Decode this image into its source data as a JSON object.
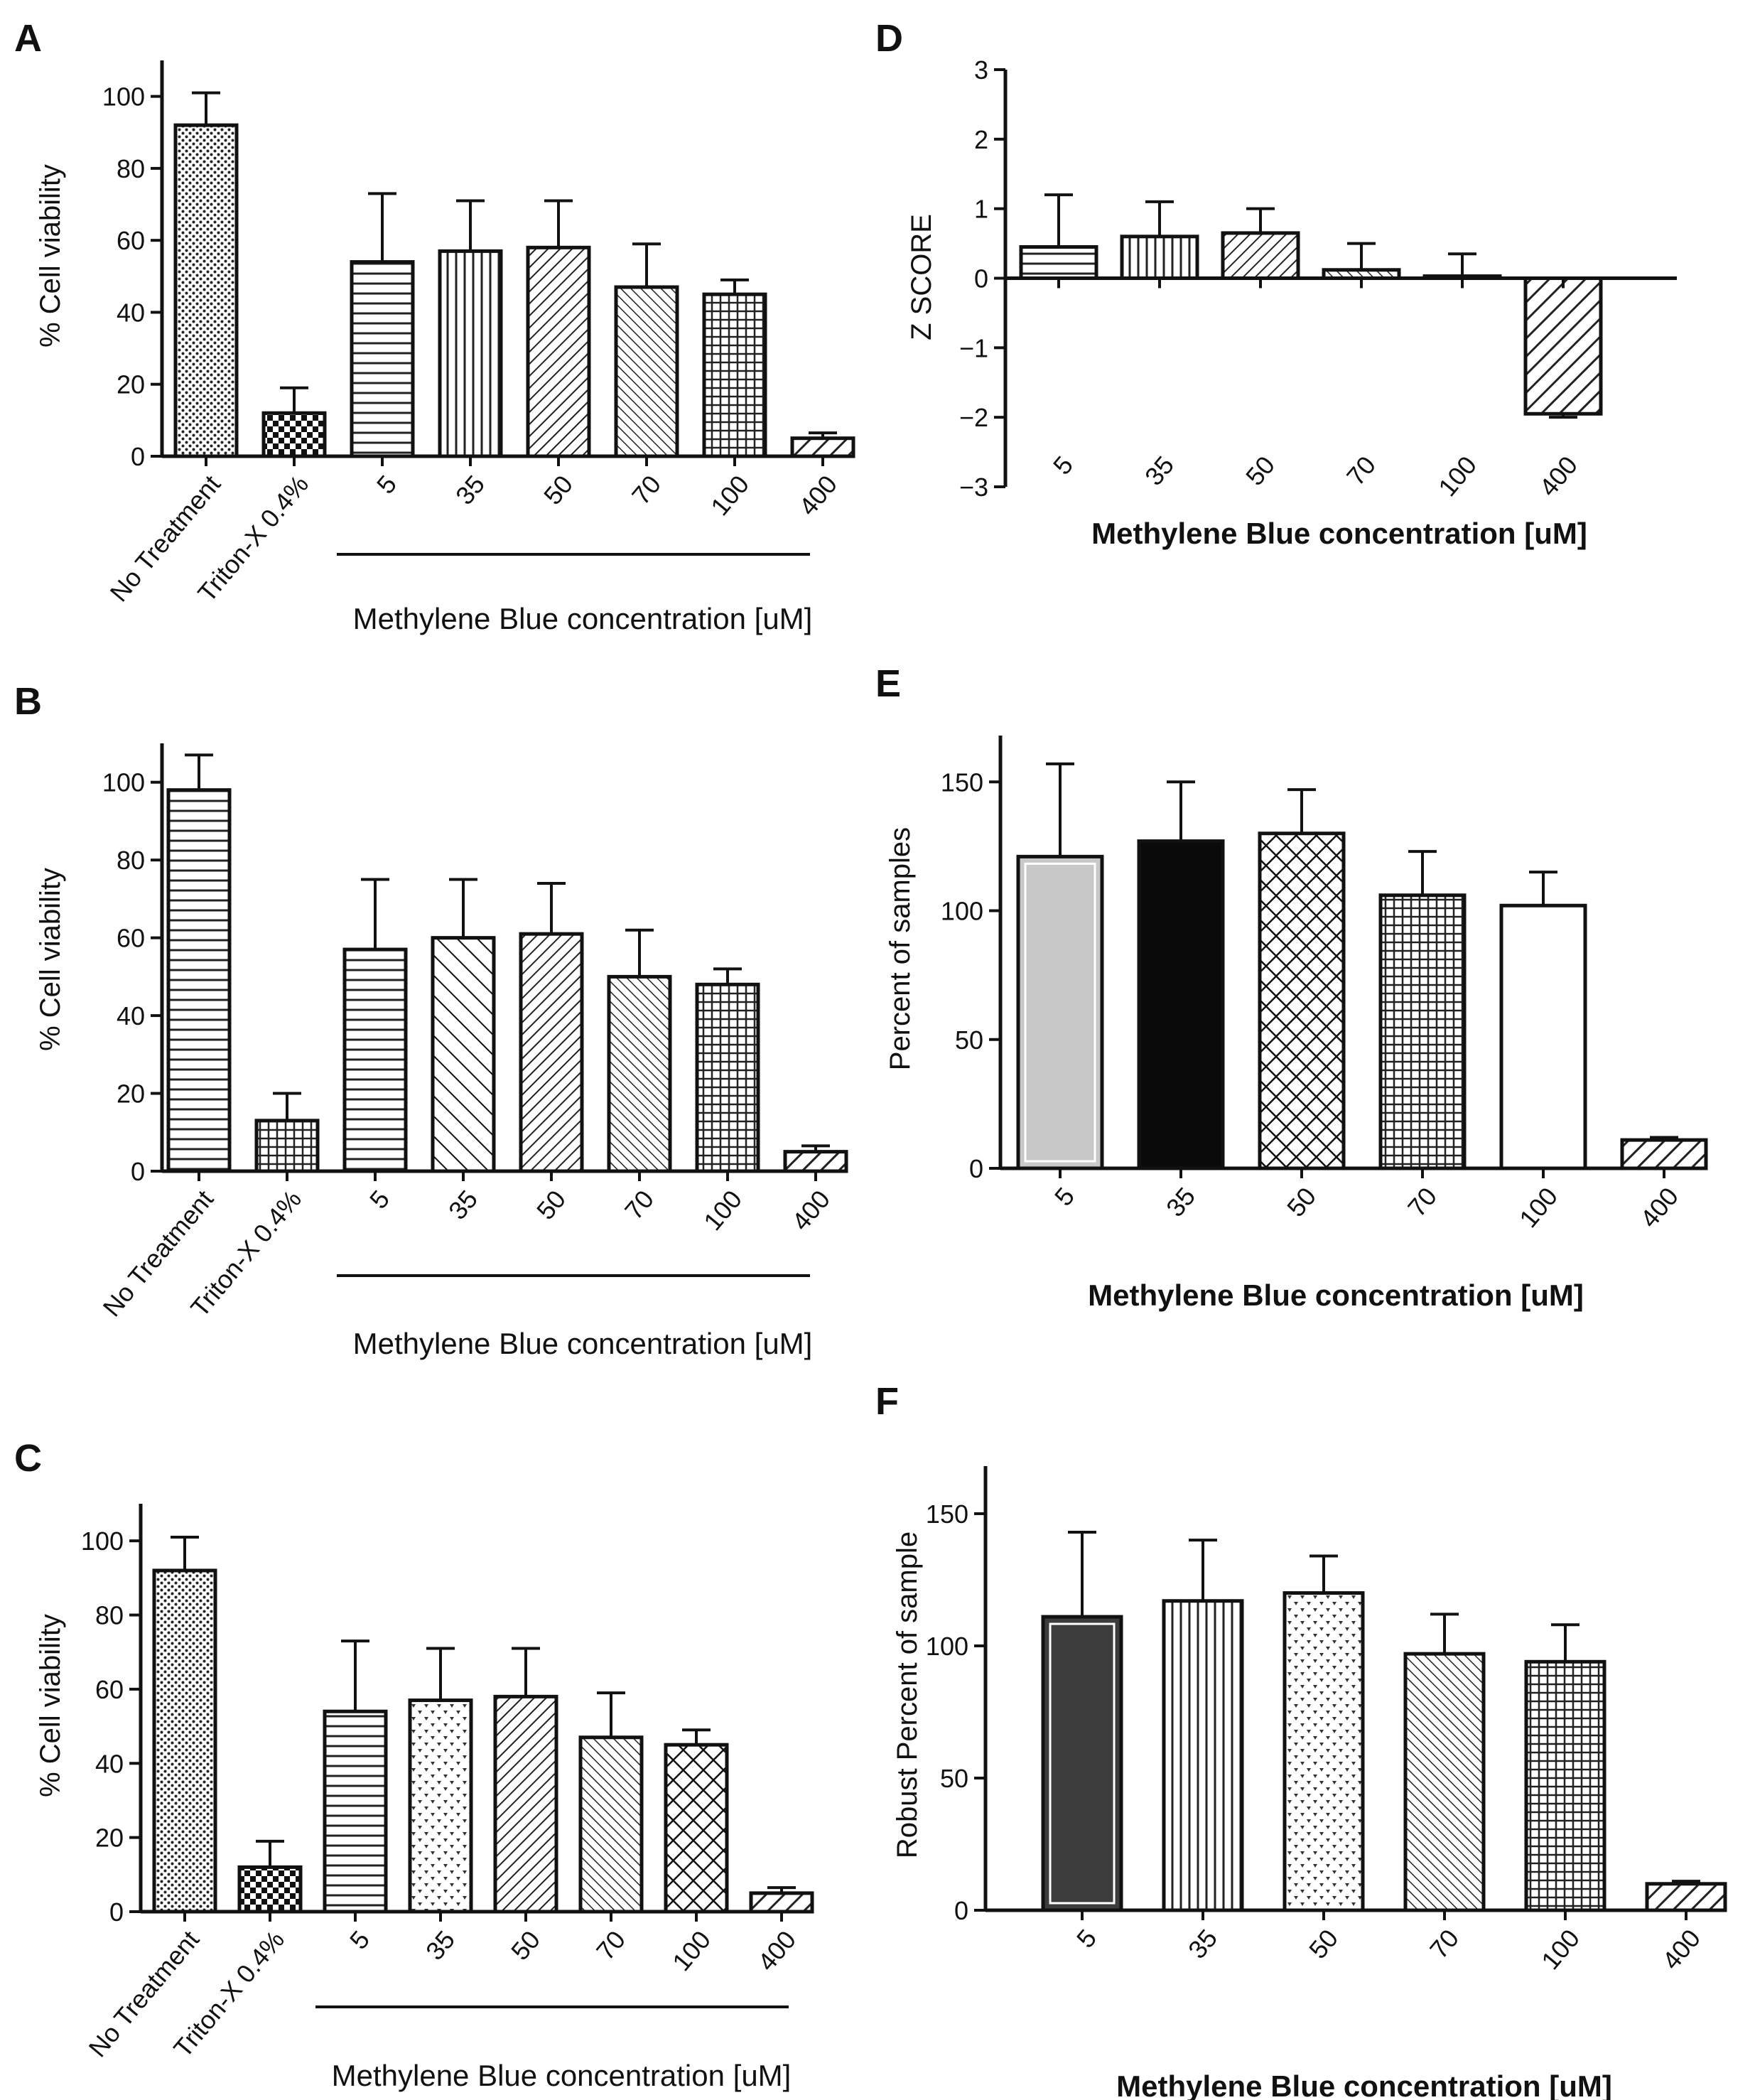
{
  "chart_data": [
    {
      "panel": "A",
      "type": "bar",
      "ylabel": "% Cell viability",
      "xlabel": "Methylene Blue concentration [uM]",
      "categories": [
        "No Treatment",
        "Triton-X 0.4%",
        "5",
        "35",
        "50",
        "70",
        "100",
        "400"
      ],
      "values": [
        92,
        12,
        54,
        57,
        58,
        47,
        45,
        5
      ],
      "errors": [
        9,
        7,
        19,
        14,
        13,
        12,
        4,
        1.5
      ],
      "patterns": [
        "dots",
        "checker",
        "hlines",
        "vlines",
        "diag",
        "diag2",
        "grid",
        "diagw"
      ],
      "yticks": [
        0,
        20,
        40,
        60,
        80,
        100
      ],
      "ylim": [
        0,
        110
      ]
    },
    {
      "panel": "B",
      "type": "bar",
      "ylabel": "% Cell viability",
      "xlabel": "Methylene Blue concentration [uM]",
      "categories": [
        "No Treatment",
        "Triton-X 0.4%",
        "5",
        "35",
        "50",
        "70",
        "100",
        "400"
      ],
      "values": [
        98,
        13,
        57,
        60,
        61,
        50,
        48,
        5
      ],
      "errors": [
        9,
        7,
        18,
        15,
        13,
        12,
        4,
        1.5
      ],
      "patterns": [
        "hlines",
        "grid",
        "hlines",
        "bdiag",
        "diag",
        "diag2",
        "grid",
        "diagw"
      ],
      "yticks": [
        0,
        20,
        40,
        60,
        80,
        100
      ],
      "ylim": [
        0,
        110
      ]
    },
    {
      "panel": "C",
      "type": "bar",
      "ylabel": "% Cell viability",
      "xlabel": "Methylene Blue concentration [uM]",
      "categories": [
        "No Treatment",
        "Triton-X 0.4%",
        "5",
        "35",
        "50",
        "70",
        "100",
        "400"
      ],
      "values": [
        92,
        12,
        54,
        57,
        58,
        47,
        45,
        5
      ],
      "errors": [
        9,
        7,
        19,
        14,
        13,
        12,
        4,
        1.5
      ],
      "patterns": [
        "dots",
        "checker",
        "hlines",
        "hearts",
        "diag",
        "diag2",
        "cross",
        "diagw"
      ],
      "yticks": [
        0,
        20,
        40,
        60,
        80,
        100
      ],
      "ylim": [
        0,
        110
      ]
    },
    {
      "panel": "D",
      "type": "bar",
      "ylabel": "Z SCORE",
      "xlabel": "Methylene Blue concentration [uM]",
      "categories": [
        "5",
        "35",
        "50",
        "70",
        "100",
        "400"
      ],
      "values": [
        0.45,
        0.6,
        0.65,
        0.12,
        0.03,
        -1.95
      ],
      "errors": [
        0.75,
        0.5,
        0.35,
        0.38,
        0.32,
        0.05
      ],
      "patterns": [
        "hlines",
        "vlines",
        "diag",
        "diag2",
        "grid",
        "diagw"
      ],
      "yticks": [
        -3,
        -2,
        -1,
        0,
        1,
        2,
        3
      ],
      "ylim": [
        -3,
        3
      ]
    },
    {
      "panel": "E",
      "type": "bar",
      "ylabel": "Percent of samples",
      "xlabel": "Methylene Blue concentration [uM]",
      "categories": [
        "5",
        "35",
        "50",
        "70",
        "100",
        "400"
      ],
      "values": [
        121,
        127,
        130,
        106,
        102,
        11
      ],
      "errors": [
        36,
        23,
        17,
        17,
        13,
        1
      ],
      "patterns": [
        "gray",
        "black",
        "cross",
        "grid",
        "white",
        "diagw"
      ],
      "yticks": [
        0,
        50,
        100,
        150
      ],
      "ylim": [
        0,
        168
      ]
    },
    {
      "panel": "F",
      "type": "bar",
      "ylabel": "Robust Percent of sample",
      "xlabel": "Methylene Blue concentration [uM]",
      "categories": [
        "5",
        "35",
        "50",
        "70",
        "100",
        "400"
      ],
      "values": [
        111,
        117,
        120,
        97,
        94,
        10
      ],
      "errors": [
        32,
        23,
        14,
        15,
        14,
        1
      ],
      "patterns": [
        "darkgray",
        "vlines",
        "hearts",
        "diag2",
        "grid",
        "diagw"
      ],
      "yticks": [
        0,
        50,
        100,
        150
      ],
      "ylim": [
        0,
        168
      ]
    }
  ]
}
